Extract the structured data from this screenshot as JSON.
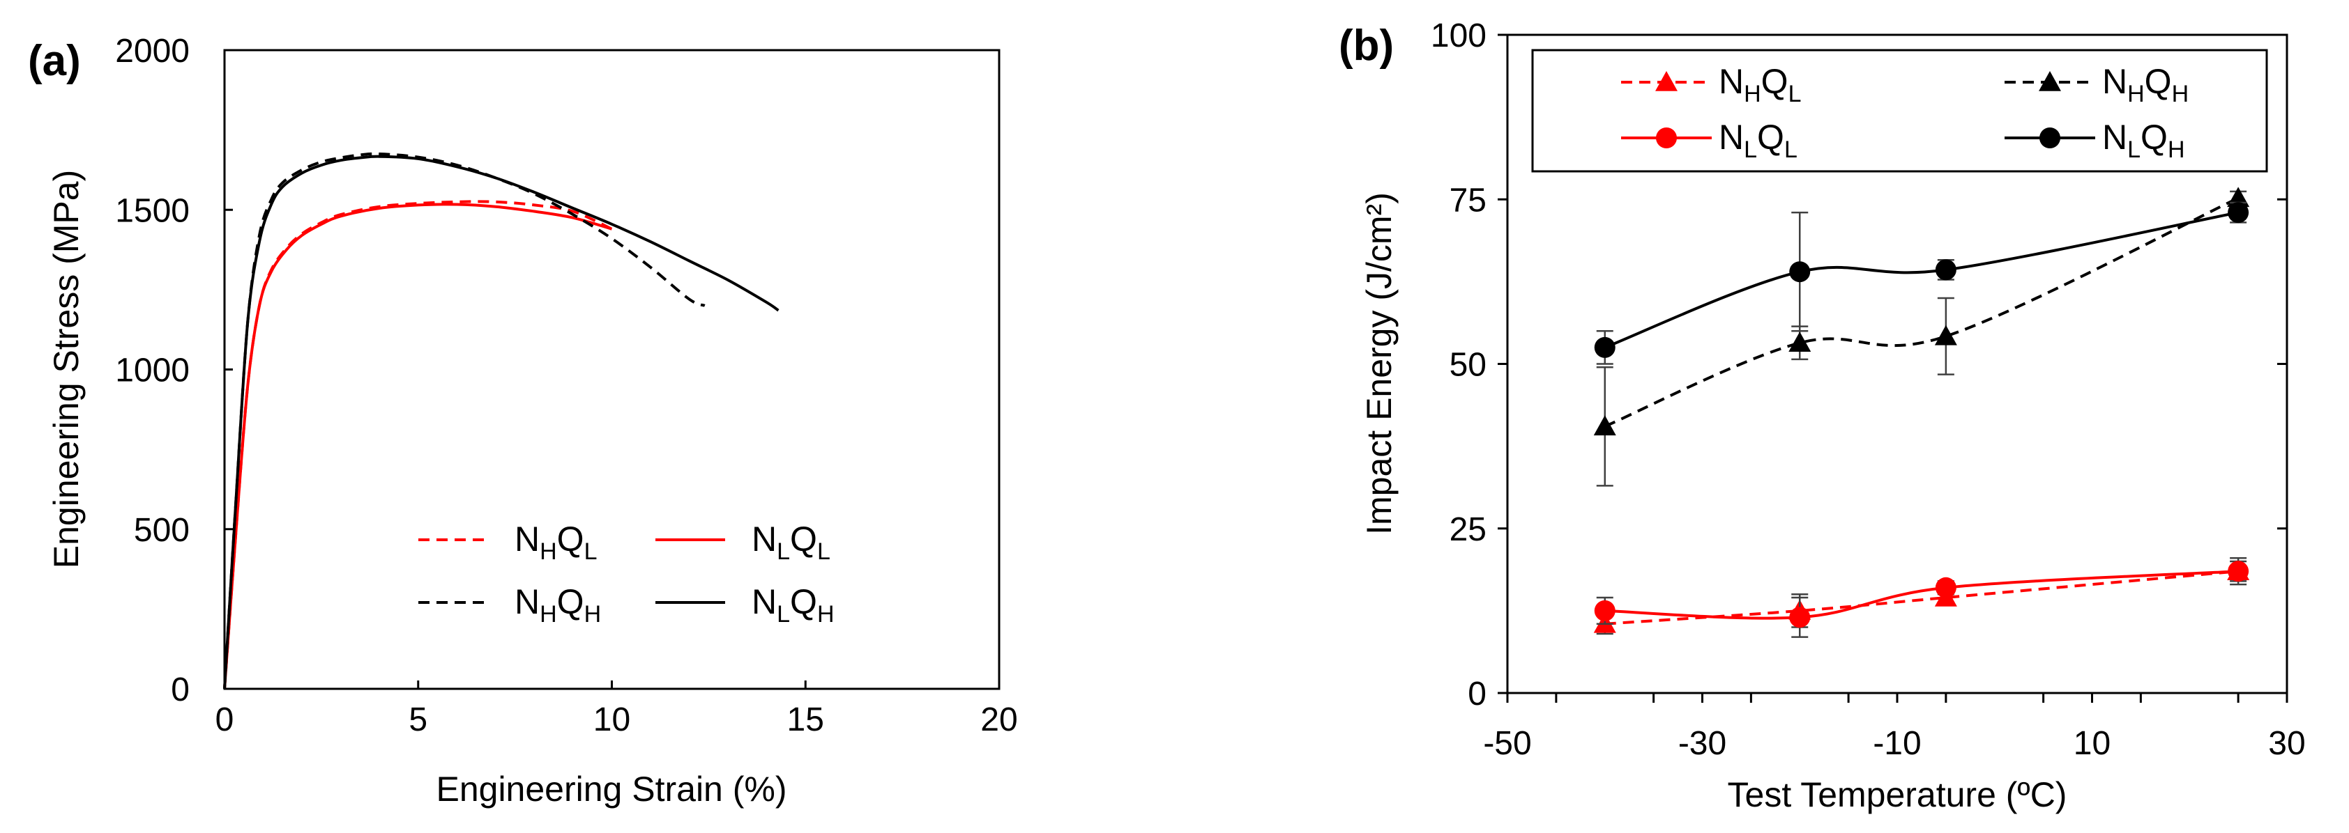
{
  "chart_data": [
    {
      "panel_label": "(a)",
      "type": "line",
      "xlabel": "Engineering Strain (%)",
      "ylabel": "Engineering Stress (MPa)",
      "xlim": [
        0,
        20
      ],
      "ylim": [
        0,
        2000
      ],
      "xticks": [
        "0",
        "5",
        "10",
        "15",
        "20"
      ],
      "yticks": [
        "0",
        "500",
        "1000",
        "1500",
        "2000"
      ],
      "grid": false,
      "legend_position": "lower-right",
      "series": [
        {
          "name": "N_H Q_L",
          "name_parts": [
            "N",
            "H",
            "Q",
            "L"
          ],
          "color": "#ff0000",
          "dash": true,
          "x": [
            0,
            0.3,
            0.6,
            0.9,
            1.2,
            1.6,
            2,
            2.5,
            3,
            4,
            5,
            6,
            7,
            8,
            9,
            10
          ],
          "y": [
            0,
            500,
            950,
            1200,
            1310,
            1380,
            1425,
            1460,
            1485,
            1510,
            1520,
            1525,
            1525,
            1515,
            1495,
            1440
          ]
        },
        {
          "name": "N_L Q_L",
          "name_parts": [
            "N",
            "L",
            "Q",
            "L"
          ],
          "color": "#ff0000",
          "dash": false,
          "x": [
            0,
            0.3,
            0.6,
            0.9,
            1.2,
            1.6,
            2,
            2.5,
            3,
            4,
            5,
            6,
            7,
            8,
            9,
            10
          ],
          "y": [
            0,
            500,
            950,
            1200,
            1305,
            1375,
            1420,
            1455,
            1480,
            1505,
            1515,
            1517,
            1510,
            1495,
            1475,
            1440
          ]
        },
        {
          "name": "N_H Q_H",
          "name_parts": [
            "N",
            "H",
            "Q",
            "H"
          ],
          "color": "#000000",
          "dash": true,
          "x": [
            0,
            0.3,
            0.6,
            0.9,
            1.2,
            1.5,
            2,
            2.5,
            3,
            3.5,
            4,
            5,
            6,
            7,
            8,
            9,
            10,
            11,
            12,
            12.4
          ],
          "y": [
            0,
            600,
            1150,
            1420,
            1530,
            1585,
            1625,
            1650,
            1663,
            1672,
            1675,
            1665,
            1640,
            1600,
            1550,
            1485,
            1410,
            1320,
            1220,
            1200
          ]
        },
        {
          "name": "N_L Q_H",
          "name_parts": [
            "N",
            "L",
            "Q",
            "H"
          ],
          "color": "#000000",
          "dash": false,
          "x": [
            0,
            0.3,
            0.6,
            0.9,
            1.2,
            1.5,
            2,
            2.5,
            3,
            3.5,
            4,
            5,
            6,
            7,
            8,
            9,
            10,
            11,
            12,
            13,
            14,
            14.3
          ],
          "y": [
            0,
            600,
            1150,
            1400,
            1515,
            1572,
            1615,
            1640,
            1655,
            1663,
            1667,
            1660,
            1635,
            1600,
            1555,
            1505,
            1455,
            1400,
            1340,
            1280,
            1210,
            1185
          ]
        }
      ]
    },
    {
      "panel_label": "(b)",
      "type": "line",
      "xlabel": "Test Temperature (ºC)",
      "ylabel": "Impact Energy (J/cm²)",
      "xlim": [
        -50,
        30
      ],
      "ylim": [
        0,
        100
      ],
      "xticks": [
        "-50",
        "-30",
        "-10",
        "10",
        "30"
      ],
      "yticks": [
        "0",
        "25",
        "50",
        "75",
        "100"
      ],
      "grid": false,
      "legend_position": "top",
      "series": [
        {
          "name": "N_H Q_L",
          "name_parts": [
            "N",
            "H",
            "Q",
            "L"
          ],
          "color": "#ff0000",
          "dash": true,
          "marker": "triangle",
          "x": [
            -40,
            -20,
            -5,
            25
          ],
          "y": [
            10.5,
            12.5,
            14.5,
            18.5
          ],
          "err": [
            1.5,
            2.5,
            1.0,
            1.5
          ]
        },
        {
          "name": "N_L Q_L",
          "name_parts": [
            "N",
            "L",
            "Q",
            "L"
          ],
          "color": "#ff0000",
          "dash": false,
          "marker": "circle",
          "x": [
            -40,
            -20,
            -5,
            25
          ],
          "y": [
            12.5,
            11.5,
            16,
            18.5
          ],
          "err": [
            2.0,
            3.0,
            1.0,
            2.0
          ]
        },
        {
          "name": "N_H Q_H",
          "name_parts": [
            "N",
            "H",
            "Q",
            "H"
          ],
          "color": "#000000",
          "dash": true,
          "marker": "triangle",
          "x": [
            -40,
            -20,
            -5,
            25
          ],
          "y": [
            40.5,
            53.2,
            54.2,
            75.2
          ],
          "err": [
            9.0,
            2.5,
            5.8,
            1.0
          ]
        },
        {
          "name": "N_L Q_H",
          "name_parts": [
            "N",
            "L",
            "Q",
            "H"
          ],
          "color": "#000000",
          "dash": false,
          "marker": "circle",
          "x": [
            -40,
            -20,
            -5,
            25
          ],
          "y": [
            52.5,
            64,
            64.3,
            73
          ],
          "err": [
            2.5,
            9.0,
            1.5,
            1.5
          ]
        }
      ]
    }
  ]
}
